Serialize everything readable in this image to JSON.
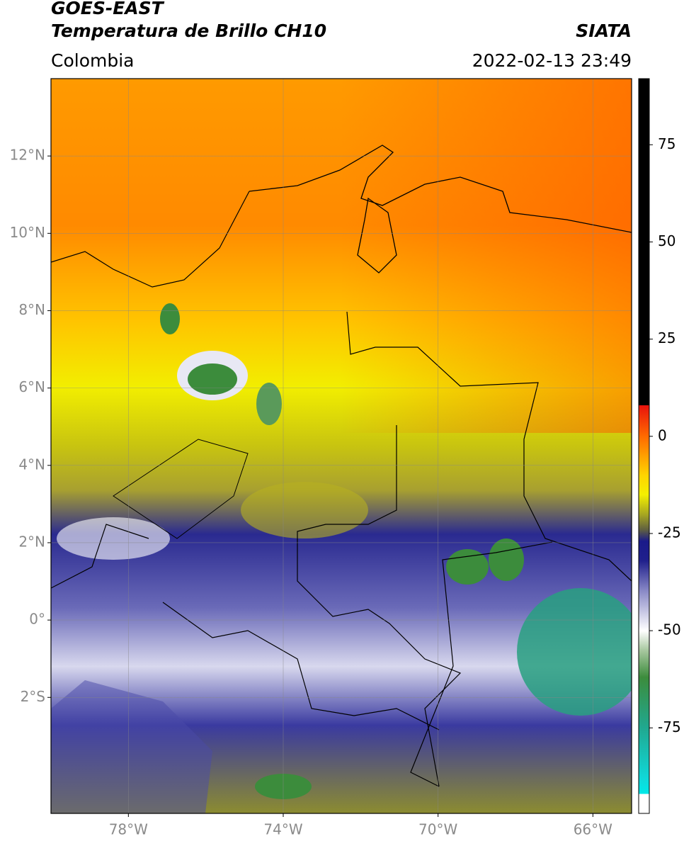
{
  "chart_data": {
    "type": "map",
    "title": "GOES-EAST",
    "subtitle": "Temperatura de Brillo CH10",
    "source": "SIATA",
    "region": "Colombia",
    "timestamp": "2022-02-13 23:49",
    "xlim": [
      -80,
      -65
    ],
    "ylim": [
      -5,
      14
    ],
    "xticks": [
      {
        "value": -78,
        "label": "78°W"
      },
      {
        "value": -74,
        "label": "74°W"
      },
      {
        "value": -70,
        "label": "70°W"
      },
      {
        "value": -66,
        "label": "66°W"
      }
    ],
    "yticks": [
      {
        "value": -2,
        "label": "2°S"
      },
      {
        "value": 0,
        "label": "0°"
      },
      {
        "value": 2,
        "label": "2°N"
      },
      {
        "value": 4,
        "label": "4°N"
      },
      {
        "value": 6,
        "label": "6°N"
      },
      {
        "value": 8,
        "label": "8°N"
      },
      {
        "value": 10,
        "label": "10°N"
      },
      {
        "value": 12,
        "label": "12°N"
      }
    ],
    "grid": true,
    "colorbar": {
      "lim": [
        -97,
        92
      ],
      "ticks": [
        -75,
        -50,
        -25,
        0,
        25,
        50,
        75
      ],
      "stops": [
        {
          "value": 92,
          "color": "#000000"
        },
        {
          "value": 8,
          "color": "#000000"
        },
        {
          "value": 8,
          "color": "#e8120c"
        },
        {
          "value": 0,
          "color": "#ff6a00"
        },
        {
          "value": -10,
          "color": "#ffd400"
        },
        {
          "value": -15,
          "color": "#f4f000"
        },
        {
          "value": -20,
          "color": "#a8a820"
        },
        {
          "value": -24,
          "color": "#606040"
        },
        {
          "value": -27,
          "color": "#1a1a8a"
        },
        {
          "value": -32,
          "color": "#20208c"
        },
        {
          "value": -40,
          "color": "#8c8cc8"
        },
        {
          "value": -50,
          "color": "#ffffff"
        },
        {
          "value": -55,
          "color": "#a8c8a0"
        },
        {
          "value": -62,
          "color": "#3c8c3c"
        },
        {
          "value": -75,
          "color": "#20a890"
        },
        {
          "value": -88,
          "color": "#10d8d8"
        },
        {
          "value": -92,
          "color": "#00e8e8"
        },
        {
          "value": -92,
          "color": "#ffffff"
        },
        {
          "value": -97,
          "color": "#ffffff"
        }
      ]
    }
  }
}
